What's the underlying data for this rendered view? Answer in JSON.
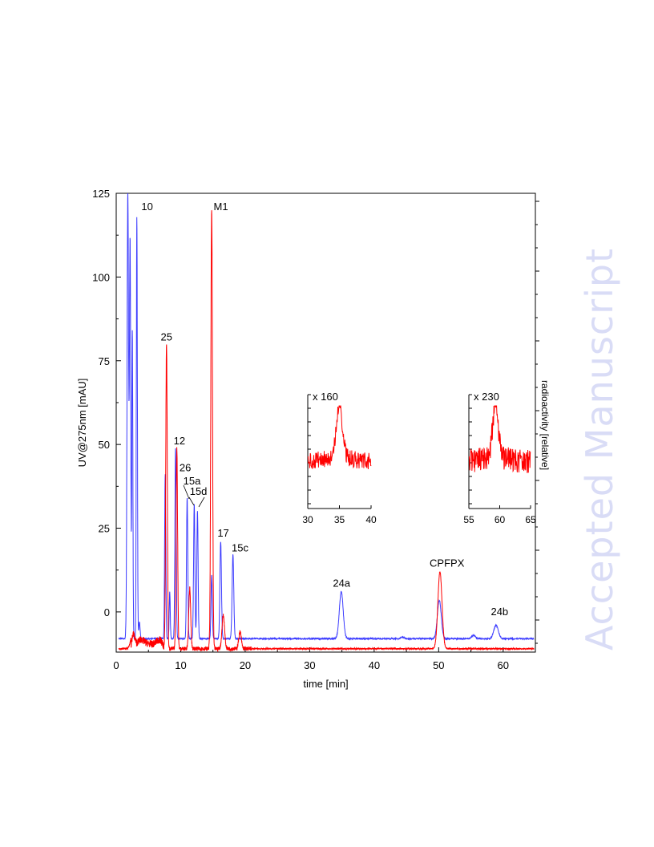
{
  "watermark": "Accepted Manuscript",
  "colors": {
    "uv": "#3b3bff",
    "radio": "#ff0000",
    "axis": "#000000"
  },
  "chart_data": [
    {
      "type": "line",
      "xlabel": "time [min]",
      "ylabel": "UV@275nm [mAU]",
      "y2label": "radioactivity [relative]",
      "xlim": [
        0,
        65
      ],
      "ylim": [
        -12,
        125
      ],
      "xticks": [
        0,
        10,
        20,
        30,
        40,
        50,
        60
      ],
      "yticks": [
        0,
        25,
        50,
        75,
        100,
        125
      ],
      "series": [
        {
          "id": "uv",
          "color": "#3b3bff",
          "baseline": -8,
          "peaks": [
            {
              "x": 1.8,
              "y": 125,
              "w": 0.12
            },
            {
              "x": 2.15,
              "y": 110,
              "w": 0.1
            },
            {
              "x": 2.5,
              "y": 84,
              "w": 0.08
            },
            {
              "x": 3.2,
              "y": 118,
              "w": 0.08
            },
            {
              "x": 3.6,
              "y": -3,
              "w": 0.1
            },
            {
              "x": 7.6,
              "y": 41,
              "w": 0.09
            },
            {
              "x": 8.3,
              "y": 6,
              "w": 0.08
            },
            {
              "x": 9.2,
              "y": 49,
              "w": 0.1
            },
            {
              "x": 11.0,
              "y": 34,
              "w": 0.1
            },
            {
              "x": 12.1,
              "y": 32,
              "w": 0.1
            },
            {
              "x": 12.6,
              "y": 30,
              "w": 0.1
            },
            {
              "x": 14.8,
              "y": 11,
              "w": 0.1
            },
            {
              "x": 16.2,
              "y": 21,
              "w": 0.12
            },
            {
              "x": 18.1,
              "y": 17,
              "w": 0.13
            },
            {
              "x": 34.9,
              "y": 6,
              "w": 0.3
            },
            {
              "x": 44.4,
              "y": -7.5,
              "w": 0.25
            },
            {
              "x": 50.1,
              "y": 3.5,
              "w": 0.3
            },
            {
              "x": 55.4,
              "y": -7,
              "w": 0.3
            },
            {
              "x": 58.9,
              "y": -4,
              "w": 0.35
            }
          ]
        },
        {
          "id": "radio",
          "color": "#ff0000",
          "baseline": -11,
          "peaks": [
            {
              "x": 2.6,
              "y": -5,
              "w": 0.3
            },
            {
              "x": 5.2,
              "y": -7,
              "w": 0.6
            },
            {
              "x": 7.8,
              "y": 80,
              "w": 0.12
            },
            {
              "x": 9.4,
              "y": 49,
              "w": 0.12
            },
            {
              "x": 11.4,
              "y": 7,
              "w": 0.15
            },
            {
              "x": 14.8,
              "y": 120,
              "w": 0.13
            },
            {
              "x": 16.6,
              "y": -1,
              "w": 0.2
            },
            {
              "x": 19.2,
              "y": -6,
              "w": 0.2
            },
            {
              "x": 50.2,
              "y": 12,
              "w": 0.32
            }
          ]
        }
      ],
      "annotations": [
        {
          "text": "10",
          "x": 3.9,
          "y": 120
        },
        {
          "text": "M1",
          "x": 15.1,
          "y": 120
        },
        {
          "text": "25",
          "x": 6.9,
          "y": 81
        },
        {
          "text": "12",
          "x": 8.9,
          "y": 50
        },
        {
          "text": "26",
          "x": 9.8,
          "y": 42
        },
        {
          "text": "15a",
          "x": 10.4,
          "y": 38
        },
        {
          "text": "15d",
          "x": 11.4,
          "y": 35
        },
        {
          "text": "17",
          "x": 15.7,
          "y": 22.5
        },
        {
          "text": "15c",
          "x": 17.9,
          "y": 18
        },
        {
          "text": "24a",
          "x": 33.6,
          "y": 7.5
        },
        {
          "text": "CPFPX",
          "x": 48.6,
          "y": 13.5
        },
        {
          "text": "24b",
          "x": 58.1,
          "y": -1
        }
      ]
    },
    {
      "type": "line",
      "title": "x 160",
      "xlim": [
        30,
        40
      ],
      "xticks": [
        30,
        35,
        40
      ],
      "series": [
        {
          "id": "radio-zoom-1",
          "color": "#ff0000",
          "peak_x": 35.0
        }
      ]
    },
    {
      "type": "line",
      "title": "x 230",
      "xlim": [
        55,
        65
      ],
      "xticks": [
        55,
        60,
        65
      ],
      "series": [
        {
          "id": "radio-zoom-2",
          "color": "#ff0000",
          "peak_x": 59.3
        }
      ]
    }
  ]
}
